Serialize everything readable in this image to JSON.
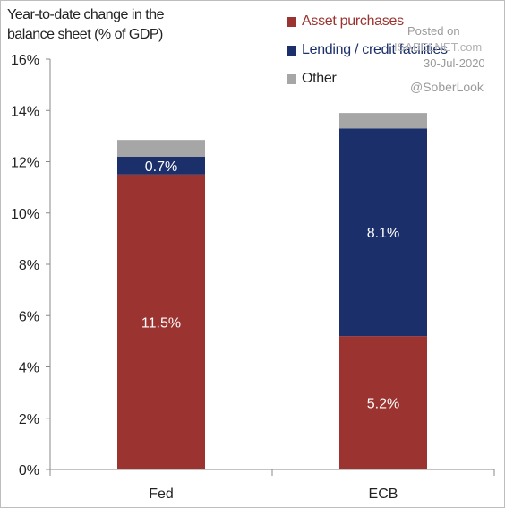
{
  "chart_data": {
    "type": "bar",
    "stacked": true,
    "title": "",
    "ylabel": "Year-to-date change in the\nbalance sheet (% of GDP)",
    "xlabel": "",
    "categories": [
      "Fed",
      "ECB"
    ],
    "ylim": [
      0,
      16
    ],
    "yticks": [
      "0%",
      "2%",
      "4%",
      "6%",
      "8%",
      "10%",
      "12%",
      "14%",
      "16%"
    ],
    "grid": false,
    "legend_position": "top-right",
    "series": [
      {
        "name": "Asset purchases",
        "values": [
          11.5,
          5.2
        ],
        "labels": [
          "11.5%",
          "5.2%"
        ],
        "color": "#9b3430"
      },
      {
        "name": "Lending / credit facilities",
        "values": [
          0.7,
          8.1
        ],
        "labels": [
          "0.7%",
          "8.1%"
        ],
        "color": "#1b2f6b"
      },
      {
        "name": "Other",
        "values": [
          0.65,
          0.6
        ],
        "labels": [
          "",
          ""
        ],
        "color": "#a6a6a6"
      }
    ]
  },
  "watermark": {
    "posted_on": "Posted on",
    "site": "ISABELNET.com",
    "date": "30-Jul-2020",
    "handle": "@SoberLook"
  }
}
